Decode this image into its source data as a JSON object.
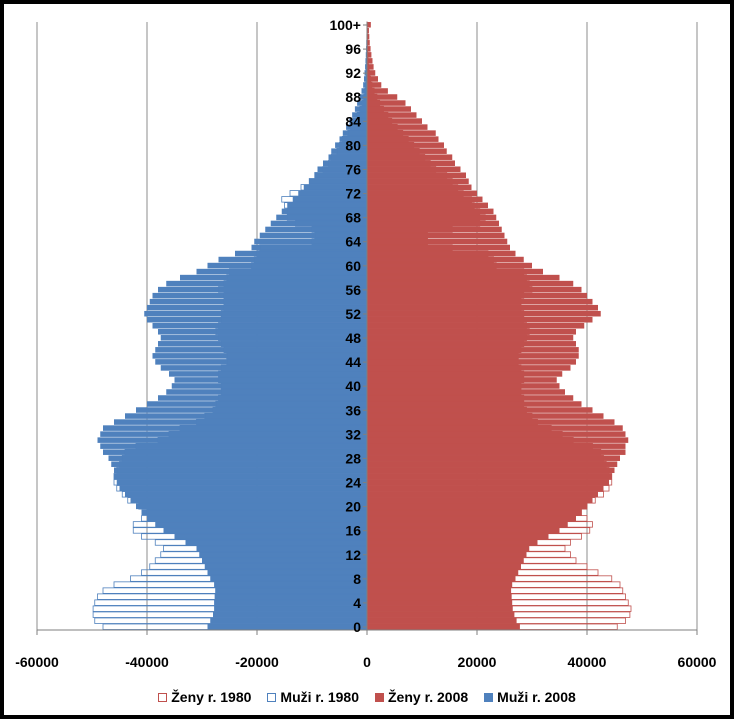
{
  "chart_data": {
    "type": "bar",
    "orientation": "horizontal",
    "title": "",
    "xlim": [
      -60000,
      60000
    ],
    "x_ticks": [
      -60000,
      -40000,
      -20000,
      0,
      20000,
      40000,
      60000
    ],
    "y_tick_labels": [
      "0",
      "4",
      "8",
      "12",
      "16",
      "20",
      "24",
      "28",
      "32",
      "36",
      "40",
      "44",
      "48",
      "52",
      "56",
      "60",
      "64",
      "68",
      "72",
      "76",
      "80",
      "84",
      "88",
      "92",
      "96",
      "100+"
    ],
    "y_tick_ages": [
      0,
      4,
      8,
      12,
      16,
      20,
      24,
      28,
      32,
      36,
      40,
      44,
      48,
      52,
      56,
      60,
      64,
      68,
      72,
      76,
      80,
      84,
      88,
      92,
      96,
      100
    ],
    "ages": [
      0,
      1,
      2,
      3,
      4,
      5,
      6,
      7,
      8,
      9,
      10,
      11,
      12,
      13,
      14,
      15,
      16,
      17,
      18,
      19,
      20,
      21,
      22,
      23,
      24,
      25,
      26,
      27,
      28,
      29,
      30,
      31,
      32,
      33,
      34,
      35,
      36,
      37,
      38,
      39,
      40,
      41,
      42,
      43,
      44,
      45,
      46,
      47,
      48,
      49,
      50,
      51,
      52,
      53,
      54,
      55,
      56,
      57,
      58,
      59,
      60,
      61,
      62,
      63,
      64,
      65,
      66,
      67,
      68,
      69,
      70,
      71,
      72,
      73,
      74,
      75,
      76,
      77,
      78,
      79,
      80,
      81,
      82,
      83,
      84,
      85,
      86,
      87,
      88,
      89,
      90,
      91,
      92,
      93,
      94,
      95,
      96,
      97,
      98,
      99,
      100
    ],
    "gridlines": "vertical",
    "legend_position": "bottom",
    "series": [
      {
        "name": "Muži r. 2008",
        "style": "filled",
        "color": "#4F81BD",
        "side": "left",
        "values": [
          29000,
          28500,
          28000,
          27800,
          27800,
          27700,
          27600,
          27800,
          28500,
          29000,
          29500,
          30000,
          30500,
          31000,
          33000,
          35000,
          37000,
          38500,
          40000,
          41000,
          42000,
          43000,
          44000,
          45000,
          45500,
          46000,
          46000,
          46500,
          47000,
          48000,
          48500,
          49000,
          48500,
          48000,
          46000,
          44000,
          42000,
          40000,
          38000,
          36500,
          35500,
          35000,
          36000,
          37500,
          38500,
          39000,
          38500,
          38000,
          37500,
          38000,
          39000,
          40000,
          40500,
          40000,
          39500,
          39000,
          38000,
          36500,
          34000,
          31000,
          29000,
          27000,
          24000,
          21000,
          20500,
          19500,
          18500,
          17500,
          16500,
          15500,
          14500,
          13500,
          12500,
          11500,
          10500,
          9500,
          9000,
          8000,
          7000,
          6500,
          5800,
          5000,
          4400,
          3800,
          3200,
          2700,
          2200,
          1800,
          1300,
          1000,
          700,
          550,
          450,
          350,
          280,
          220,
          170,
          130,
          100,
          80,
          60
        ]
      },
      {
        "name": "Ženy r. 2008",
        "style": "filled",
        "color": "#C0504D",
        "side": "right",
        "values": [
          27800,
          27200,
          26800,
          26500,
          26400,
          26300,
          26200,
          26400,
          27000,
          27500,
          28000,
          28500,
          29000,
          29500,
          31000,
          33000,
          35000,
          36500,
          38000,
          39000,
          40000,
          41000,
          42000,
          43000,
          44000,
          44500,
          45000,
          45500,
          46000,
          47000,
          47000,
          47500,
          47000,
          46500,
          45000,
          43000,
          41000,
          39000,
          37500,
          36000,
          35000,
          34500,
          35500,
          37000,
          38000,
          38500,
          38500,
          38000,
          37500,
          38000,
          39500,
          41000,
          42500,
          42000,
          41000,
          40000,
          39000,
          37500,
          35000,
          32000,
          30000,
          28500,
          27000,
          26000,
          25500,
          25000,
          24500,
          24000,
          23500,
          23000,
          22000,
          21000,
          20000,
          19000,
          18500,
          18000,
          17000,
          16000,
          15500,
          14500,
          14000,
          13000,
          12500,
          11000,
          10000,
          9000,
          8000,
          7000,
          5500,
          3800,
          2600,
          2000,
          1500,
          1200,
          1000,
          800,
          650,
          500,
          420,
          350,
          700
        ]
      },
      {
        "name": "Muži r. 1980",
        "style": "outline",
        "color": "#4F81BD",
        "side": "left",
        "values": [
          48000,
          49500,
          49800,
          49800,
          49500,
          49000,
          48000,
          46000,
          43000,
          41000,
          39500,
          38500,
          37500,
          37000,
          38500,
          41000,
          42500,
          42500,
          41000,
          40000,
          41500,
          43500,
          44500,
          45500,
          46000,
          46000,
          45500,
          45000,
          44500,
          44000,
          42000,
          38000,
          36000,
          34000,
          31000,
          29500,
          28000,
          27500,
          27000,
          26500,
          26500,
          27000,
          27000,
          26500,
          25500,
          25500,
          26000,
          26500,
          27000,
          27500,
          27000,
          26500,
          26500,
          26000,
          26000,
          26000,
          27000,
          26000,
          25500,
          25000,
          21000,
          20500,
          20000,
          19500,
          10000,
          9500,
          10000,
          13000,
          14500,
          14500,
          15000,
          15500,
          14000,
          12000,
          10500,
          9500,
          8000,
          7000,
          6500,
          5500,
          5000,
          4500,
          3500,
          3000,
          2500,
          1800,
          1300,
          900,
          600,
          400,
          250,
          180,
          130,
          100,
          70,
          50,
          40,
          30,
          20,
          15,
          10
        ]
      },
      {
        "name": "Ženy r. 1980",
        "style": "outline",
        "color": "#C0504D",
        "side": "right",
        "values": [
          45500,
          47000,
          47800,
          48000,
          47500,
          47000,
          46500,
          46000,
          44500,
          42000,
          40000,
          38000,
          37000,
          36000,
          37000,
          39000,
          40500,
          41000,
          40000,
          39000,
          40000,
          41500,
          43000,
          44000,
          44500,
          44500,
          44000,
          43500,
          43000,
          42500,
          41000,
          37500,
          35500,
          33500,
          31000,
          30000,
          29000,
          28500,
          28500,
          28000,
          28000,
          28500,
          28500,
          28000,
          27500,
          27500,
          28000,
          28500,
          29000,
          29500,
          29000,
          28500,
          28500,
          28000,
          28000,
          28500,
          30000,
          29500,
          29000,
          28500,
          23500,
          23000,
          22000,
          15500,
          11000,
          11000,
          15500,
          20500,
          21500,
          20500,
          19500,
          19000,
          17500,
          16500,
          15500,
          14500,
          12500,
          11500,
          10500,
          9500,
          8500,
          7500,
          6500,
          5500,
          4500,
          3800,
          3000,
          2300,
          1800,
          1300,
          900,
          650,
          450,
          300,
          200,
          150,
          100,
          70,
          50,
          30,
          20
        ]
      }
    ]
  }
}
